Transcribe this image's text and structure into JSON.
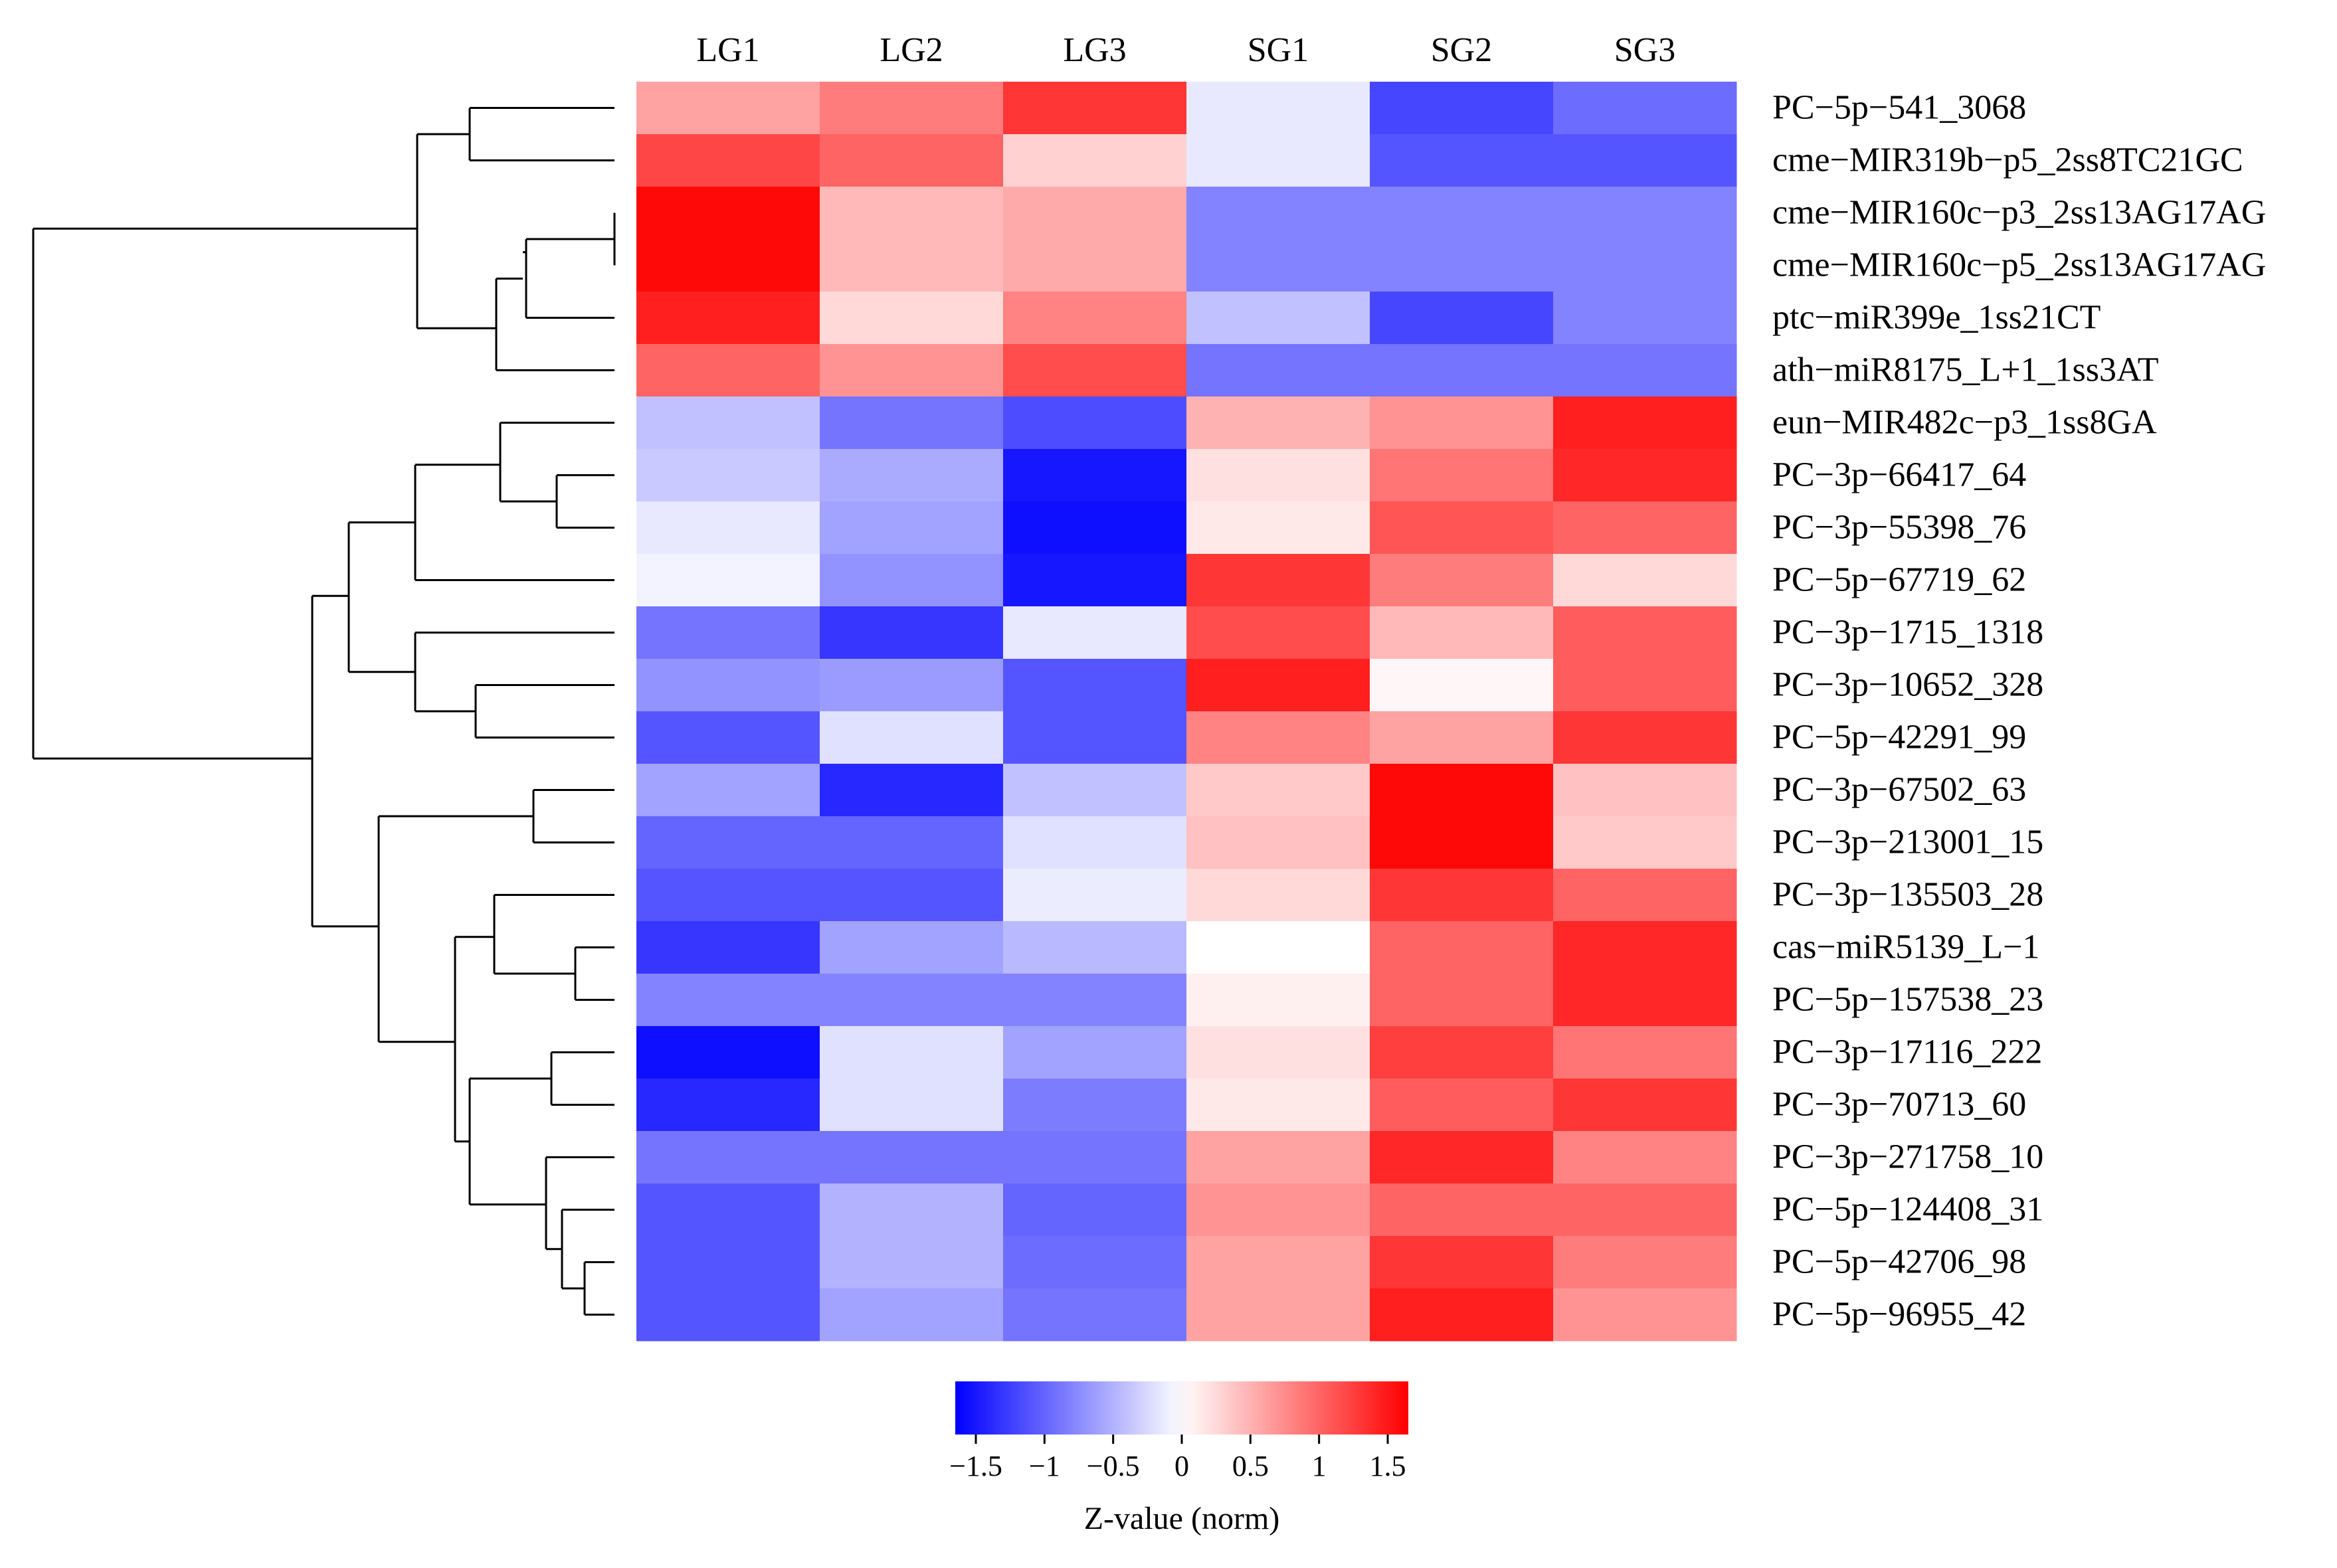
{
  "chart_data": {
    "type": "heatmap",
    "title": "",
    "columns": [
      "LG1",
      "LG2",
      "LG3",
      "SG1",
      "SG2",
      "SG3"
    ],
    "rows": [
      "PC−5p−541_3068",
      "cme−MIR319b−p5_2ss8TC21GC",
      "cme−MIR160c−p3_2ss13AG17AG",
      "cme−MIR160c−p5_2ss13AG17AG",
      "ptc−miR399e_1ss21CT",
      "ath−miR8175_L+1_1ss3AT",
      "eun−MIR482c−p3_1ss8GA",
      "PC−3p−66417_64",
      "PC−3p−55398_76",
      "PC−5p−67719_62",
      "PC−3p−1715_1318",
      "PC−3p−10652_328",
      "PC−5p−42291_99",
      "PC−3p−67502_63",
      "PC−3p−213001_15",
      "PC−3p−135503_28",
      "cas−miR5139_L−1",
      "PC−5p−157538_23",
      "PC−3p−17116_222",
      "PC−3p−70713_60",
      "PC−3p−271758_10",
      "PC−5p−124408_31",
      "PC−5p−42706_98",
      "PC−5p−96955_42"
    ],
    "values": [
      [
        0.6,
        0.85,
        1.3,
        -0.15,
        -1.2,
        -0.95
      ],
      [
        1.2,
        1.0,
        0.3,
        -0.15,
        -1.1,
        -1.1
      ],
      [
        1.6,
        0.45,
        0.55,
        -0.8,
        -0.8,
        -0.8
      ],
      [
        1.6,
        0.45,
        0.55,
        -0.8,
        -0.8,
        -0.8
      ],
      [
        1.45,
        0.25,
        0.8,
        -0.4,
        -1.2,
        -0.8
      ],
      [
        1.0,
        0.7,
        1.15,
        -0.9,
        -0.9,
        -0.9
      ],
      [
        -0.4,
        -0.9,
        -1.15,
        0.5,
        0.7,
        1.45
      ],
      [
        -0.35,
        -0.55,
        -1.5,
        0.2,
        0.9,
        1.4
      ],
      [
        -0.15,
        -0.6,
        -1.55,
        0.15,
        1.1,
        1.0
      ],
      [
        -0.08,
        -0.7,
        -1.5,
        1.3,
        0.85,
        0.25
      ],
      [
        -0.9,
        -1.3,
        -0.15,
        1.15,
        0.45,
        1.05
      ],
      [
        -0.7,
        -0.65,
        -1.1,
        1.45,
        0.05,
        1.05
      ],
      [
        -1.1,
        -0.2,
        -1.1,
        0.8,
        0.6,
        1.3
      ],
      [
        -0.6,
        -1.4,
        -0.4,
        0.35,
        1.6,
        0.4
      ],
      [
        -1.0,
        -1.0,
        -0.2,
        0.4,
        1.6,
        0.35
      ],
      [
        -1.1,
        -1.1,
        -0.12,
        0.25,
        1.3,
        1.0
      ],
      [
        -1.3,
        -0.6,
        -0.45,
        0.0,
        1.0,
        1.4
      ],
      [
        -0.8,
        -0.8,
        -0.8,
        0.1,
        1.0,
        1.4
      ],
      [
        -1.55,
        -0.2,
        -0.6,
        0.2,
        1.25,
        0.9
      ],
      [
        -1.4,
        -0.2,
        -0.85,
        0.15,
        1.05,
        1.3
      ],
      [
        -0.9,
        -0.9,
        -0.9,
        0.6,
        1.4,
        0.8
      ],
      [
        -1.1,
        -0.5,
        -1.0,
        0.7,
        1.0,
        1.0
      ],
      [
        -1.1,
        -0.5,
        -0.95,
        0.6,
        1.3,
        0.85
      ],
      [
        -1.1,
        -0.6,
        -0.9,
        0.6,
        1.45,
        0.7
      ]
    ],
    "color_scale": {
      "min": -1.65,
      "max": 1.65,
      "low_color": "#0000ff",
      "mid_color": "#ffffff",
      "high_color": "#ff0000"
    },
    "legend": {
      "title": "Z-value (norm)",
      "ticks": [
        -1.5,
        -1,
        -0.5,
        0,
        0.5,
        1,
        1.5
      ],
      "tick_labels": [
        "−1.5",
        "−1",
        "−0.5",
        "0",
        "0.5",
        "1",
        "1.5"
      ]
    },
    "row_dendrogram_order": "top-to-bottom as listed"
  }
}
